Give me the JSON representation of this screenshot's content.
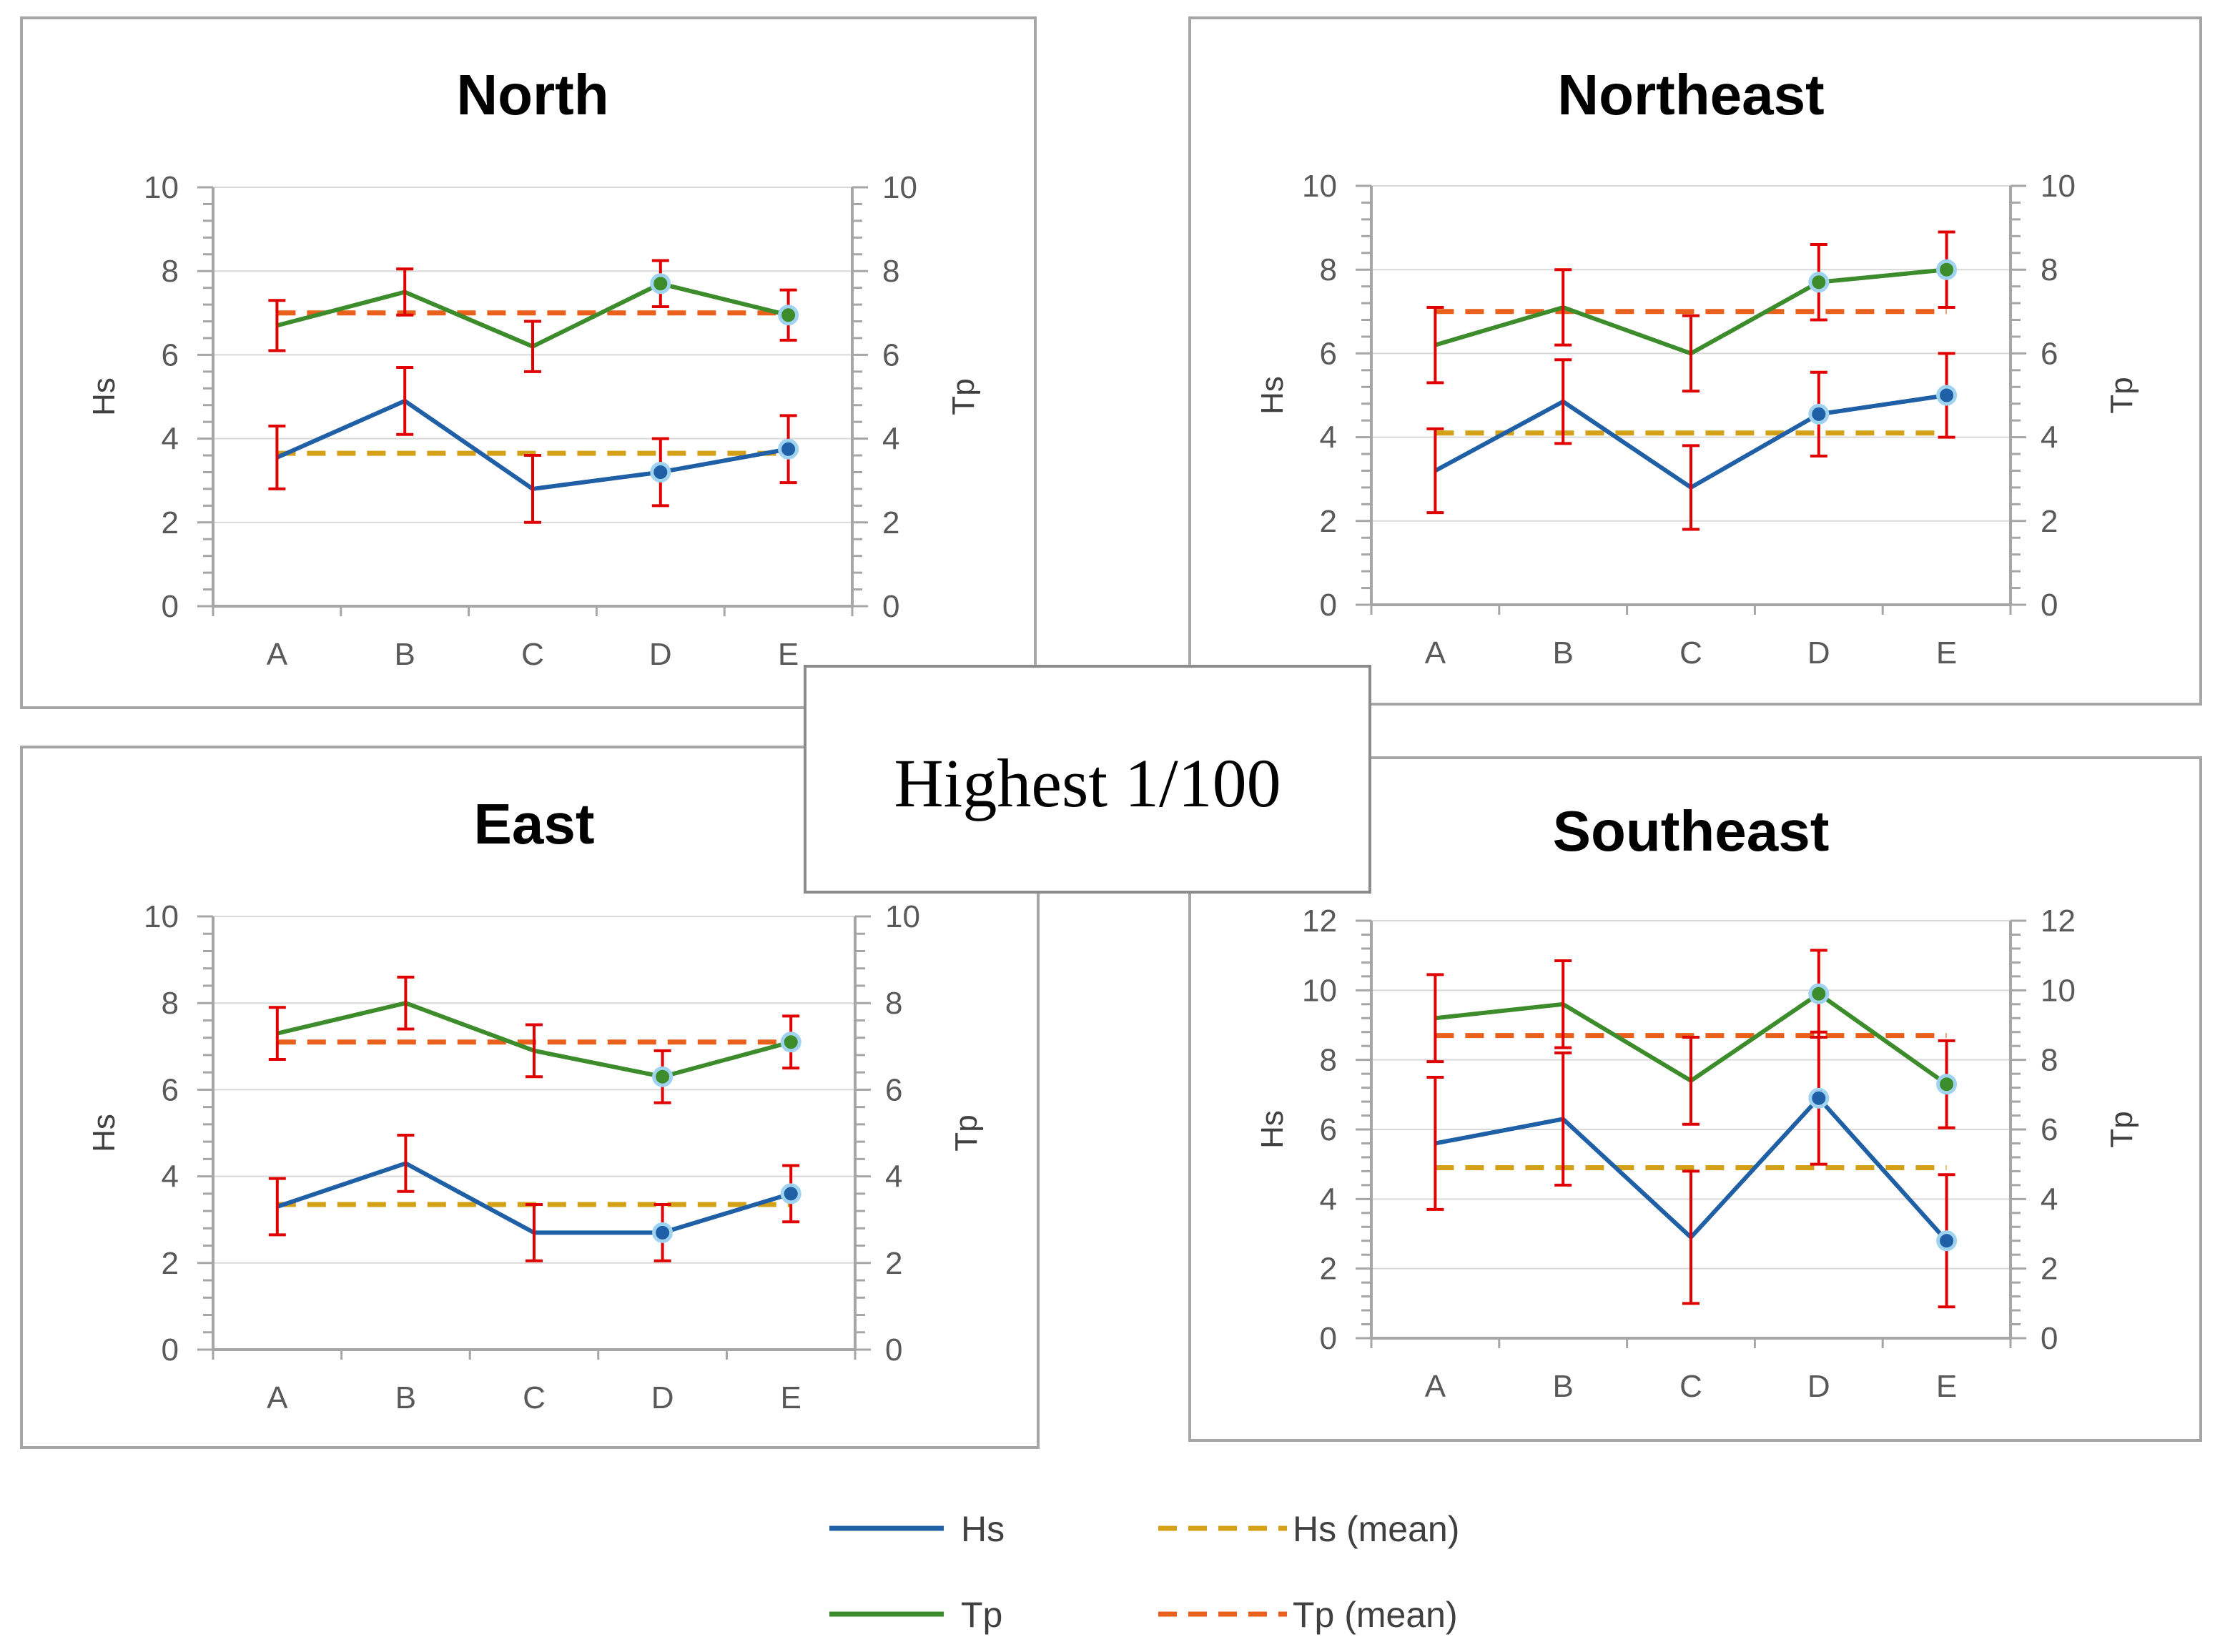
{
  "center_label": "Highest 1/100",
  "colors": {
    "hs": "#1f5fa6",
    "tp": "#3c8c2c",
    "hs_mean": "#d4a017",
    "tp_mean": "#e8601c",
    "error_bar": "#e00000",
    "axis": "#a6a6a6",
    "grid": "#d9d9d9",
    "frame": "#a6a6a6"
  },
  "legend": [
    {
      "key": "hs",
      "label": "Hs",
      "style": "solid"
    },
    {
      "key": "hs_mean",
      "label": "Hs (mean)",
      "style": "dashed"
    },
    {
      "key": "tp",
      "label": "Tp",
      "style": "solid"
    },
    {
      "key": "tp_mean",
      "label": "Tp (mean)",
      "style": "dashed"
    }
  ],
  "chart_data": [
    {
      "type": "line",
      "title": "North",
      "categories": [
        "A",
        "B",
        "C",
        "D",
        "E"
      ],
      "ylabel": "Hs",
      "y2label": "Tp",
      "ylim": [
        0,
        10
      ],
      "yticks": [
        0,
        2,
        4,
        6,
        8,
        10
      ],
      "grid": true,
      "series": [
        {
          "name": "Hs",
          "key": "hs",
          "values": [
            3.55,
            4.9,
            2.8,
            3.2,
            3.75
          ],
          "errors": [
            0.75,
            0.8,
            0.8,
            0.8,
            0.8
          ],
          "markers": [
            3,
            4
          ]
        },
        {
          "name": "Tp",
          "key": "tp",
          "values": [
            6.7,
            7.5,
            6.2,
            7.7,
            6.95
          ],
          "errors": [
            0.6,
            0.55,
            0.6,
            0.55,
            0.6
          ],
          "markers": [
            3,
            4
          ]
        },
        {
          "name": "Hs (mean)",
          "key": "hs_mean",
          "mean": 3.65
        },
        {
          "name": "Tp (mean)",
          "key": "tp_mean",
          "mean": 7.0
        }
      ]
    },
    {
      "type": "line",
      "title": "Northeast",
      "categories": [
        "A",
        "B",
        "C",
        "D",
        "E"
      ],
      "ylabel": "Hs",
      "y2label": "Tp",
      "ylim": [
        0,
        10
      ],
      "yticks": [
        0,
        2,
        4,
        6,
        8,
        10
      ],
      "grid": true,
      "series": [
        {
          "name": "Hs",
          "key": "hs",
          "values": [
            3.2,
            4.85,
            2.8,
            4.55,
            5.0
          ],
          "errors": [
            1.0,
            1.0,
            1.0,
            1.0,
            1.0
          ],
          "markers": [
            3,
            4
          ]
        },
        {
          "name": "Tp",
          "key": "tp",
          "values": [
            6.2,
            7.1,
            6.0,
            7.7,
            8.0
          ],
          "errors": [
            0.9,
            0.9,
            0.9,
            0.9,
            0.9
          ],
          "markers": [
            3,
            4
          ]
        },
        {
          "name": "Hs (mean)",
          "key": "hs_mean",
          "mean": 4.1
        },
        {
          "name": "Tp (mean)",
          "key": "tp_mean",
          "mean": 7.0
        }
      ]
    },
    {
      "type": "line",
      "title": "East",
      "categories": [
        "A",
        "B",
        "C",
        "D",
        "E"
      ],
      "ylabel": "Hs",
      "y2label": "Tp",
      "ylim": [
        0,
        10
      ],
      "yticks": [
        0,
        2,
        4,
        6,
        8,
        10
      ],
      "grid": true,
      "series": [
        {
          "name": "Hs",
          "key": "hs",
          "values": [
            3.3,
            4.3,
            2.7,
            2.7,
            3.6
          ],
          "errors": [
            0.65,
            0.65,
            0.65,
            0.65,
            0.65
          ],
          "markers": [
            3,
            4
          ]
        },
        {
          "name": "Tp",
          "key": "tp",
          "values": [
            7.3,
            8.0,
            6.9,
            6.3,
            7.1
          ],
          "errors": [
            0.6,
            0.6,
            0.6,
            0.6,
            0.6
          ],
          "markers": [
            3,
            4
          ]
        },
        {
          "name": "Hs (mean)",
          "key": "hs_mean",
          "mean": 3.35
        },
        {
          "name": "Tp (mean)",
          "key": "tp_mean",
          "mean": 7.1
        }
      ]
    },
    {
      "type": "line",
      "title": "Southeast",
      "categories": [
        "A",
        "B",
        "C",
        "D",
        "E"
      ],
      "ylabel": "Hs",
      "y2label": "Tp",
      "ylim": [
        0,
        12
      ],
      "yticks": [
        0,
        2,
        4,
        6,
        8,
        10,
        12
      ],
      "grid": true,
      "series": [
        {
          "name": "Hs",
          "key": "hs",
          "values": [
            5.6,
            6.3,
            2.9,
            6.9,
            2.8
          ],
          "errors": [
            1.9,
            1.9,
            1.9,
            1.9,
            1.9
          ],
          "markers": [
            3,
            4
          ]
        },
        {
          "name": "Tp",
          "key": "tp",
          "values": [
            9.2,
            9.6,
            7.4,
            9.9,
            7.3
          ],
          "errors": [
            1.25,
            1.25,
            1.25,
            1.25,
            1.25
          ],
          "markers": [
            3,
            4
          ]
        },
        {
          "name": "Hs (mean)",
          "key": "hs_mean",
          "mean": 4.9
        },
        {
          "name": "Tp (mean)",
          "key": "tp_mean",
          "mean": 8.7
        }
      ]
    }
  ]
}
